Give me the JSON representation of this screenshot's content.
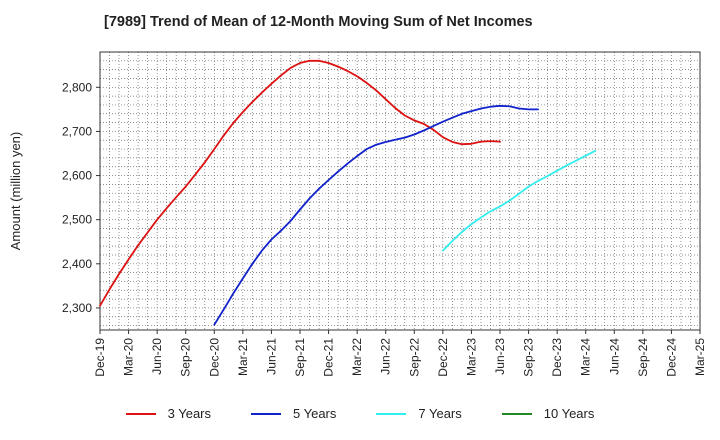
{
  "title": "[7989]  Trend of Mean of 12-Month Moving Sum of Net Incomes",
  "colors": {
    "three_years": "#dd1111",
    "five_years": "#1122cc",
    "seven_years": "#33eeee",
    "ten_years": "#228822",
    "grid": "#666666",
    "axis": "#333333"
  },
  "chart_data": {
    "type": "line",
    "title": "[7989]  Trend of Mean of 12-Month Moving Sum of Net Incomes",
    "xlabel": "",
    "ylabel": "Amount (million yen)",
    "x_ticks": [
      "Dec-19",
      "Mar-20",
      "Jun-20",
      "Sep-20",
      "Dec-20",
      "Mar-21",
      "Jun-21",
      "Sep-21",
      "Dec-21",
      "Mar-22",
      "Jun-22",
      "Sep-22",
      "Dec-22",
      "Mar-23",
      "Jun-23",
      "Sep-23",
      "Dec-23",
      "Mar-24",
      "Jun-24",
      "Sep-24",
      "Dec-24",
      "Mar-25"
    ],
    "y_ticks": [
      2300,
      2400,
      2500,
      2600,
      2700,
      2800
    ],
    "y_tick_labels": [
      "2,300",
      "2,400",
      "2,500",
      "2,600",
      "2,700",
      "2,800"
    ],
    "ylim": [
      2250,
      2880
    ],
    "grid": true,
    "legend_position": "bottom",
    "series": [
      {
        "name": "3 Years",
        "color_key": "three_years",
        "start_index": 0,
        "values": [
          2305,
          2342,
          2377,
          2410,
          2442,
          2471,
          2500,
          2526,
          2551,
          2575,
          2602,
          2630,
          2660,
          2691,
          2719,
          2744,
          2767,
          2788,
          2808,
          2827,
          2844,
          2855,
          2860,
          2860,
          2855,
          2847,
          2837,
          2825,
          2810,
          2793,
          2773,
          2753,
          2736,
          2725,
          2717,
          2704,
          2687,
          2676,
          2671,
          2672,
          2677,
          2678,
          2677
        ]
      },
      {
        "name": "5 Years",
        "color_key": "five_years",
        "start_index": 12,
        "values": [
          2262,
          2297,
          2333,
          2367,
          2400,
          2430,
          2455,
          2475,
          2497,
          2523,
          2548,
          2570,
          2590,
          2609,
          2627,
          2644,
          2660,
          2670,
          2676,
          2681,
          2686,
          2693,
          2702,
          2712,
          2722,
          2731,
          2740,
          2746,
          2752,
          2756,
          2758,
          2757,
          2752,
          2750,
          2750
        ]
      },
      {
        "name": "7 Years",
        "color_key": "seven_years",
        "start_index": 36,
        "values": [
          2430,
          2452,
          2472,
          2490,
          2505,
          2519,
          2530,
          2543,
          2559,
          2575,
          2588,
          2599,
          2611,
          2623,
          2634,
          2645,
          2656
        ]
      },
      {
        "name": "10 Years",
        "color_key": "ten_years",
        "start_index": 0,
        "values": []
      }
    ]
  }
}
